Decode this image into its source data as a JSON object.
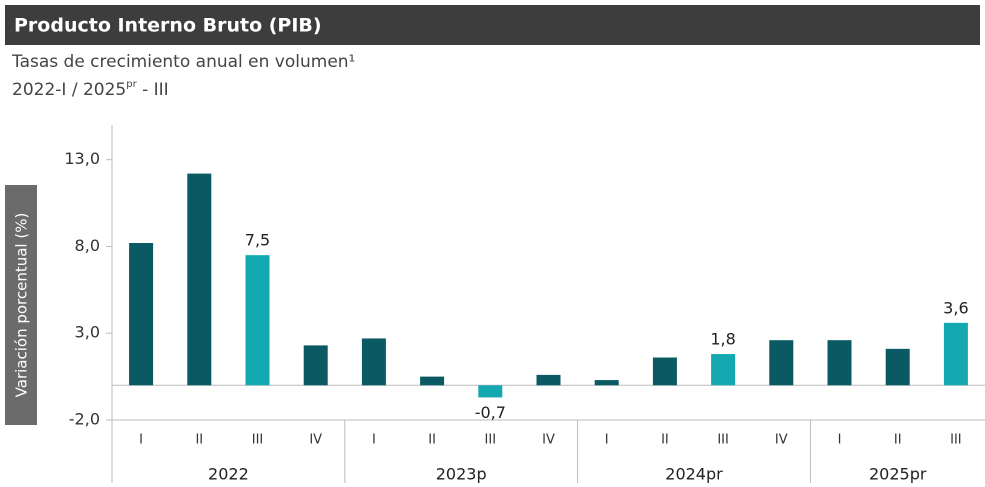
{
  "chart_data": {
    "type": "bar",
    "title": "Producto Interno Bruto (PIB)",
    "subtitle": "Tasas de crecimiento anual en volumen¹",
    "period": [
      "2022-I / 2025",
      "pr",
      " - III"
    ],
    "ylabel": "Variación porcentual (%)",
    "ylim": [
      -2,
      15
    ],
    "yticks": [
      {
        "value": -2,
        "label": "-2,0"
      },
      {
        "value": 3,
        "label": "3,0"
      },
      {
        "value": 8,
        "label": "8,0"
      },
      {
        "value": 13,
        "label": "13,0"
      }
    ],
    "groups": [
      {
        "name": "2022",
        "categories": [
          "I",
          "II",
          "III",
          "IV"
        ],
        "values": [
          8.2,
          12.2,
          7.5,
          2.3
        ],
        "value_labels": [
          null,
          null,
          "7,5",
          null
        ],
        "colors": [
          "#0b5a63",
          "#0b5a63",
          "#14a9b0",
          "#0b5a63"
        ]
      },
      {
        "name": "2023p",
        "categories": [
          "I",
          "II",
          "III",
          "IV"
        ],
        "values": [
          2.7,
          0.5,
          -0.7,
          0.6
        ],
        "value_labels": [
          null,
          null,
          "-0,7",
          null
        ],
        "colors": [
          "#0b5a63",
          "#0b5a63",
          "#14a9b0",
          "#0b5a63"
        ]
      },
      {
        "name": "2024pr",
        "categories": [
          "I",
          "II",
          "III",
          "IV"
        ],
        "values": [
          0.3,
          1.6,
          1.8,
          2.6
        ],
        "value_labels": [
          null,
          null,
          "1,8",
          null
        ],
        "colors": [
          "#0b5a63",
          "#0b5a63",
          "#14a9b0",
          "#0b5a63"
        ]
      },
      {
        "name": "2025pr",
        "categories": [
          "I",
          "II",
          "III"
        ],
        "values": [
          2.6,
          2.1,
          3.6
        ],
        "value_labels": [
          null,
          null,
          "3,6"
        ],
        "colors": [
          "#0b5a63",
          "#0b5a63",
          "#14a9b0"
        ]
      }
    ]
  }
}
